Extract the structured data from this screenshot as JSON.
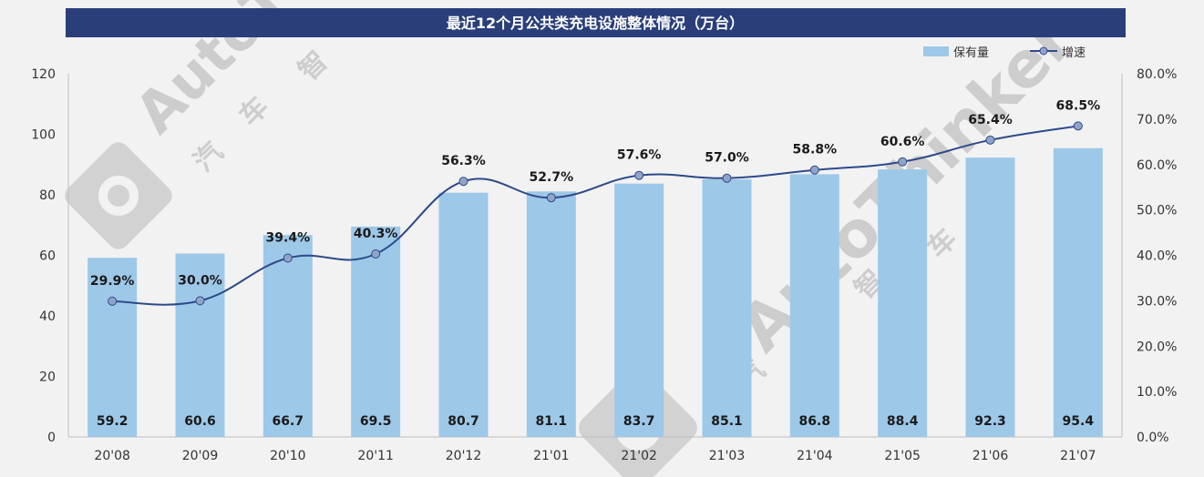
{
  "chart_data": {
    "type": "bar",
    "title": "最近12个月公共类充电设施整体情况（万台）",
    "categories": [
      "20'08",
      "20'09",
      "20'10",
      "20'11",
      "20'12",
      "21'01",
      "21'02",
      "21'03",
      "21'04",
      "21'05",
      "21'06",
      "21'07"
    ],
    "series": [
      {
        "name": "保有量",
        "type": "bar",
        "axis": "left",
        "values": [
          59.2,
          60.6,
          66.7,
          69.5,
          80.7,
          81.1,
          83.7,
          85.1,
          86.8,
          88.4,
          92.3,
          95.4
        ],
        "labels": [
          "59.2",
          "60.6",
          "66.7",
          "69.5",
          "80.7",
          "81.1",
          "83.7",
          "85.1",
          "86.8",
          "88.4",
          "92.3",
          "95.4"
        ],
        "color": "#9dc8e8"
      },
      {
        "name": "增速",
        "type": "line",
        "axis": "right",
        "values": [
          29.9,
          30.0,
          39.4,
          40.3,
          56.3,
          52.7,
          57.6,
          57.0,
          58.8,
          60.6,
          65.4,
          68.5
        ],
        "labels": [
          "29.9%",
          "30.0%",
          "39.4%",
          "40.3%",
          "56.3%",
          "52.7%",
          "57.6%",
          "57.0%",
          "58.8%",
          "60.6%",
          "65.4%",
          "68.5%"
        ],
        "color": "#2e4a8a",
        "marker_color": "#8fa4c8"
      }
    ],
    "ylim": [
      0,
      120
    ],
    "yticks": [
      "0",
      "20",
      "40",
      "60",
      "80",
      "100",
      "120"
    ],
    "y2lim": [
      0,
      80
    ],
    "y2ticks": [
      "0.0%",
      "10.0%",
      "20.0%",
      "30.0%",
      "40.0%",
      "50.0%",
      "60.0%",
      "70.0%",
      "80.0%"
    ],
    "legend_position": "top-right",
    "grid": false
  },
  "watermark": {
    "brand": "AutoThinker",
    "brand_short": "Auto",
    "brand_cn_chars": [
      "汽",
      "车",
      "智"
    ]
  }
}
